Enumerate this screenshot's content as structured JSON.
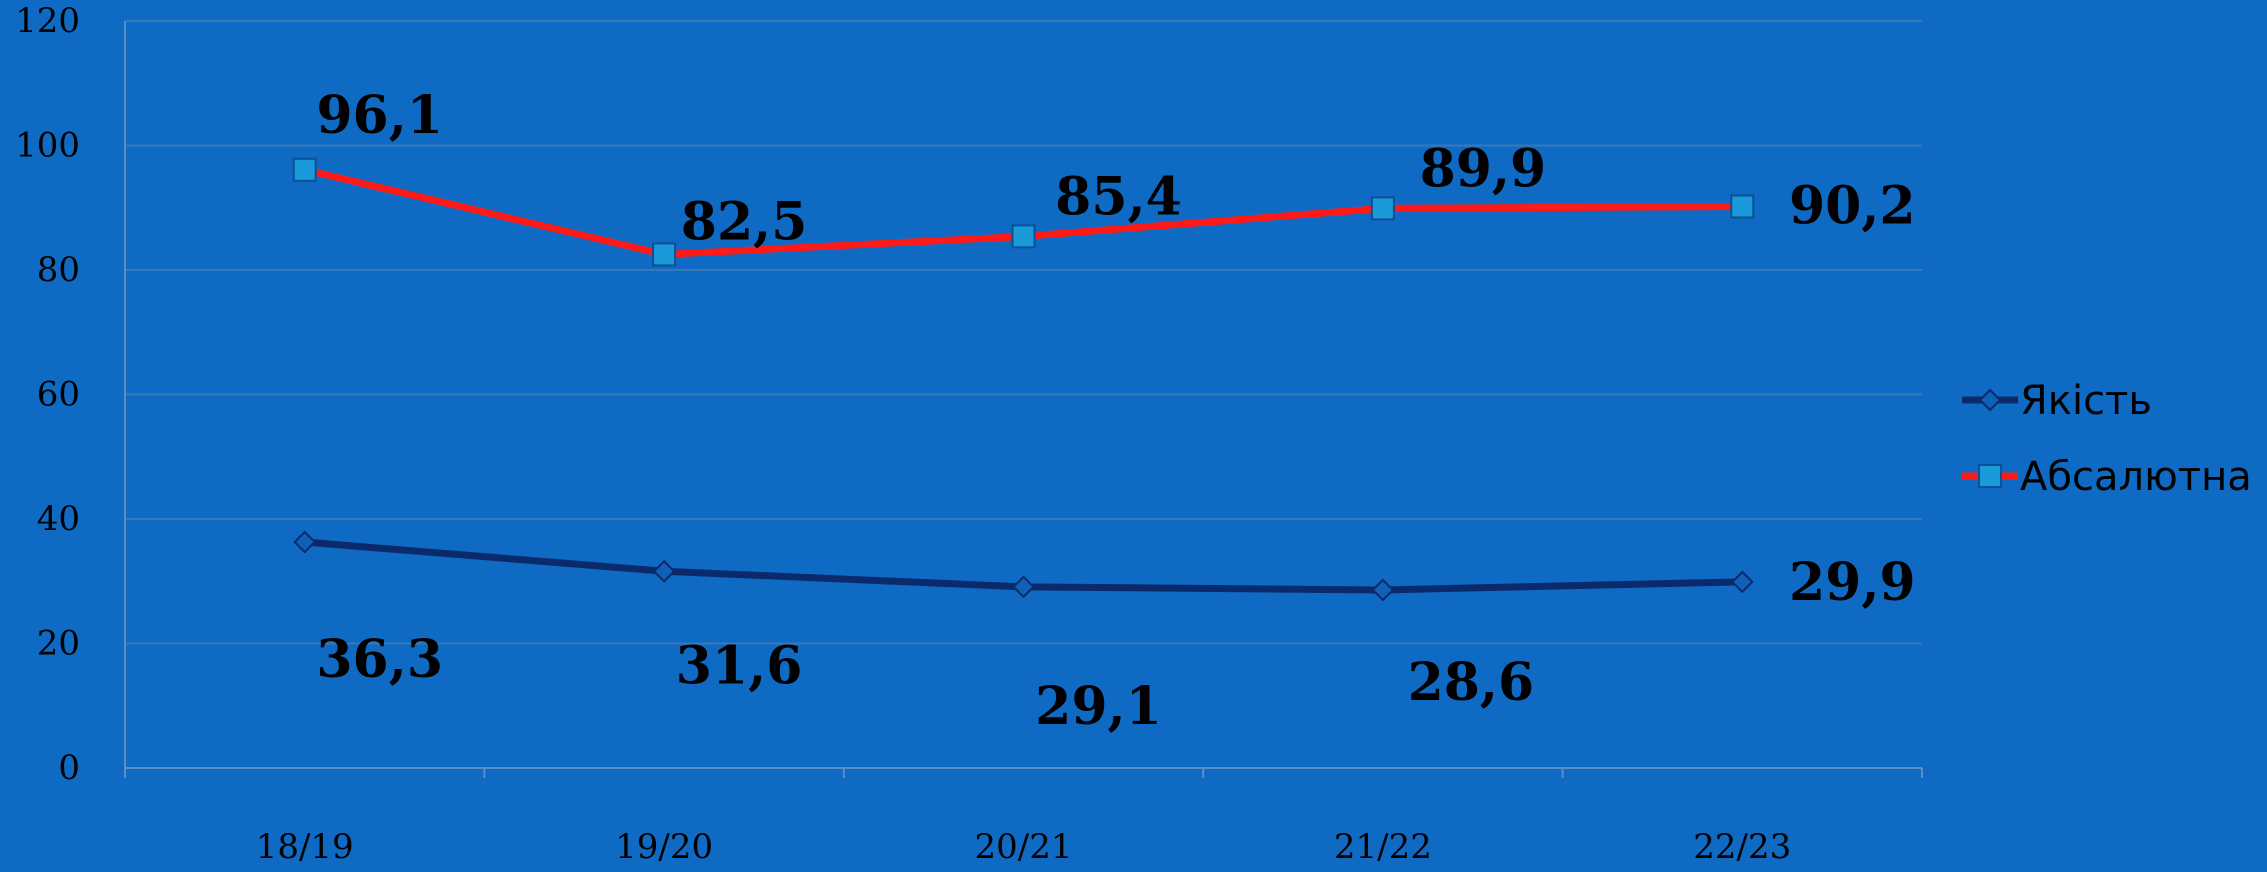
{
  "chart_data": {
    "type": "line",
    "categories": [
      "18/19",
      "19/20",
      "20/21",
      "21/22",
      "22/23"
    ],
    "series": [
      {
        "name": "Якість",
        "values": [
          36.3,
          31.6,
          29.1,
          28.6,
          29.9
        ],
        "labels": [
          "36,3",
          "31,6",
          "29,1",
          "28,6",
          "29,9"
        ],
        "color": "#0b2a6b",
        "marker": "diamond"
      },
      {
        "name": "Абсалютна",
        "values": [
          96.1,
          82.5,
          85.4,
          89.9,
          90.2
        ],
        "labels": [
          "96,1",
          "82,5",
          "85,4",
          "89,9",
          "90,2"
        ],
        "color": "#ff1a1a",
        "marker": "square",
        "marker_color": "#1a9ad8"
      }
    ],
    "ylim": [
      0,
      120
    ],
    "yticks": [
      "0",
      "20",
      "40",
      "60",
      "80",
      "100",
      "120"
    ],
    "grid": true,
    "legend": "right",
    "colors": {
      "background": "#0f6ac4",
      "grid": "#3a79b8",
      "axis": "#5a8fc4"
    }
  }
}
